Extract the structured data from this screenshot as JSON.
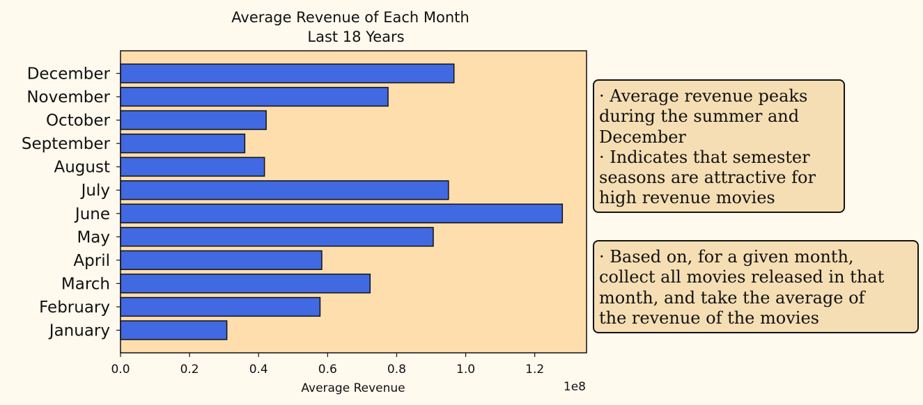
{
  "chart_data": {
    "type": "bar",
    "orientation": "horizontal",
    "title": [
      "Average Revenue of Each Month",
      "Last 18 Years"
    ],
    "xlabel": "Average Revenue",
    "ylabel": "",
    "x_offset_label": "1e8",
    "categories": [
      "January",
      "February",
      "March",
      "April",
      "May",
      "June",
      "July",
      "August",
      "September",
      "October",
      "November",
      "December"
    ],
    "values": [
      30800000,
      57800000,
      72300000,
      58300000,
      90600000,
      128000000,
      95000000,
      41700000,
      36000000,
      42200000,
      77500000,
      96600000
    ],
    "xlim": [
      0,
      135000000
    ],
    "xticks": [
      0,
      20000000,
      40000000,
      60000000,
      80000000,
      100000000,
      120000000
    ],
    "xtick_labels": [
      "0.0",
      "0.2",
      "0.4",
      "0.6",
      "0.8",
      "1.0",
      "1.2"
    ],
    "grid": false,
    "colors": {
      "bar": "#4169e1",
      "bar_edge": "#111111",
      "plot_bg": "#ffdead",
      "page_bg": "#fff9ee"
    }
  },
  "notes": [
    {
      "lines": [
        "· Average revenue peaks",
        "during the summer and",
        "December",
        "· Indicates that semester",
        "seasons are attractive for",
        "high revenue movies"
      ]
    },
    {
      "lines": [
        "· Based on, for a given month,",
        "collect all movies released in that",
        "month, and take the average of",
        "the revenue of the movies"
      ]
    }
  ],
  "note_colors": {
    "background": "#f5deb3",
    "border": "#111111"
  }
}
